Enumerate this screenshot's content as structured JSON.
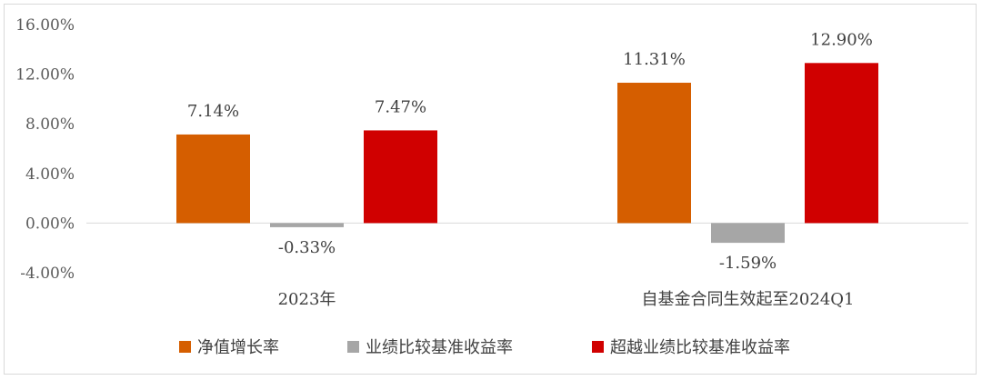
{
  "chart_data": {
    "type": "bar",
    "categories": [
      "2023年",
      "自基金合同生效起至2024Q1"
    ],
    "series": [
      {
        "name": "净值增长率",
        "values": [
          7.14,
          11.31
        ],
        "labels": [
          "7.14%",
          "11.31%"
        ],
        "color": "#D55E00"
      },
      {
        "name": "业绩比较基准收益率",
        "values": [
          -0.33,
          -1.59
        ],
        "labels": [
          "-0.33%",
          "-1.59%"
        ],
        "color": "#A6A6A6"
      },
      {
        "name": "超越业绩比较基准收益率",
        "values": [
          7.47,
          12.9
        ],
        "labels": [
          "7.47%",
          "12.90%"
        ],
        "color": "#D00000"
      }
    ],
    "y_ticks": [
      16,
      12,
      8,
      4,
      0,
      -4
    ],
    "y_tick_labels": [
      "16.00%",
      "12.00%",
      "8.00%",
      "4.00%",
      "0.00%",
      "-4.00%"
    ],
    "ylim": [
      -4,
      16
    ],
    "grid": false,
    "legend_position": "bottom-center"
  }
}
